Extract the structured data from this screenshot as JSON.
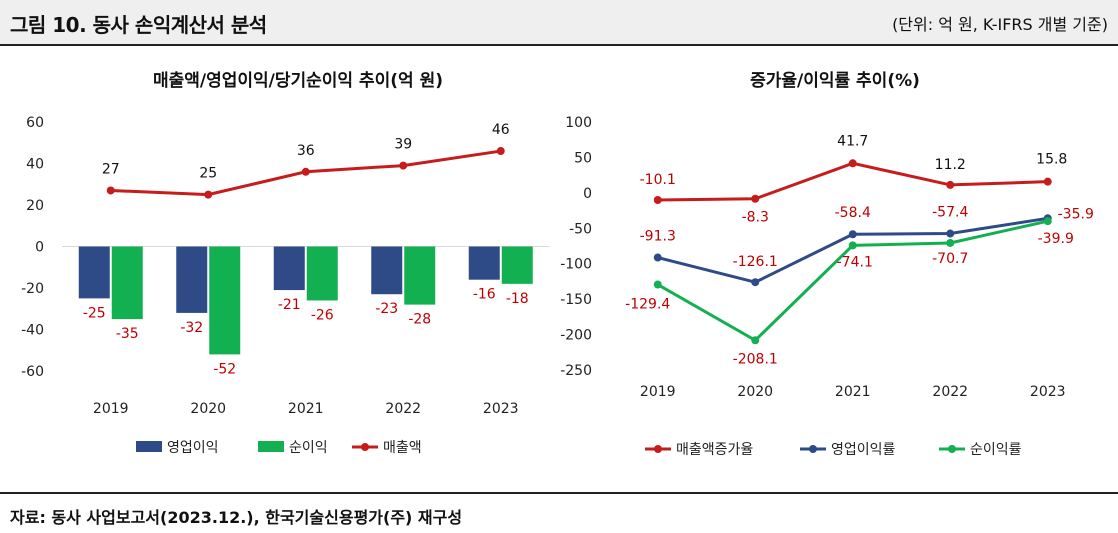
{
  "header": {
    "figure_title": "그림 10. 동사 손익계산서 분석",
    "unit_note": "(단위: 억 원, K-IFRS 개별 기준)"
  },
  "footer": {
    "source": "자료: 동사 사업보고서(2023.12.), 한국기술신용평가(주) 재구성"
  },
  "colors": {
    "navy": "#2e4a87",
    "green": "#12b050",
    "red": "#c00000",
    "red_line": "#c61c1c"
  },
  "chart_data": [
    {
      "type": "bar",
      "title": "매출액/영업이익/당기순이익 추이(억 원)",
      "categories": [
        "2019",
        "2020",
        "2021",
        "2022",
        "2023"
      ],
      "ylim": [
        -60,
        60
      ],
      "yticks": [
        60,
        40,
        20,
        0,
        -20,
        -40,
        -60
      ],
      "series": [
        {
          "name": "영업이익",
          "kind": "bar",
          "color": "#2e4a87",
          "values": [
            -25,
            -32,
            -21,
            -23,
            -16
          ],
          "labels": [
            "-25",
            "-32",
            "-21",
            "-23",
            "-16"
          ]
        },
        {
          "name": "순이익",
          "kind": "bar",
          "color": "#12b050",
          "values": [
            -35,
            -52,
            -26,
            -28,
            -18
          ],
          "labels": [
            "-35",
            "-52",
            "-26",
            "-28",
            "-18"
          ]
        },
        {
          "name": "매출액",
          "kind": "line",
          "color": "#c61c1c",
          "values": [
            27,
            25,
            36,
            39,
            46
          ],
          "labels": [
            "27",
            "25",
            "36",
            "39",
            "46"
          ]
        }
      ],
      "legend": "bottom",
      "grid": false
    },
    {
      "type": "line",
      "title": "증가율/이익률 추이(%)",
      "categories": [
        "2019",
        "2020",
        "2021",
        "2022",
        "2023"
      ],
      "ylim": [
        -250,
        100
      ],
      "yticks": [
        100,
        50,
        0,
        -50,
        -100,
        -150,
        -200,
        -250
      ],
      "series": [
        {
          "name": "매출액증가율",
          "color": "#c61c1c",
          "values": [
            -10.1,
            -8.3,
            41.7,
            11.2,
            15.8
          ],
          "labels": [
            "-10.1",
            "-8.3",
            "41.7",
            "11.2",
            "15.8"
          ]
        },
        {
          "name": "영업이익률",
          "color": "#2e4a87",
          "values": [
            -91.3,
            -126.1,
            -58.4,
            -57.4,
            -35.9
          ],
          "labels": [
            "-91.3",
            "-126.1",
            "-58.4",
            "-57.4",
            "-35.9"
          ]
        },
        {
          "name": "순이익률",
          "color": "#12b050",
          "values": [
            -129.4,
            -208.1,
            -74.1,
            -70.7,
            -39.9
          ],
          "labels": [
            "-129.4",
            "-208.1",
            "-74.1",
            "-70.7",
            "-39.9"
          ]
        }
      ],
      "legend": "bottom",
      "grid": false
    }
  ]
}
